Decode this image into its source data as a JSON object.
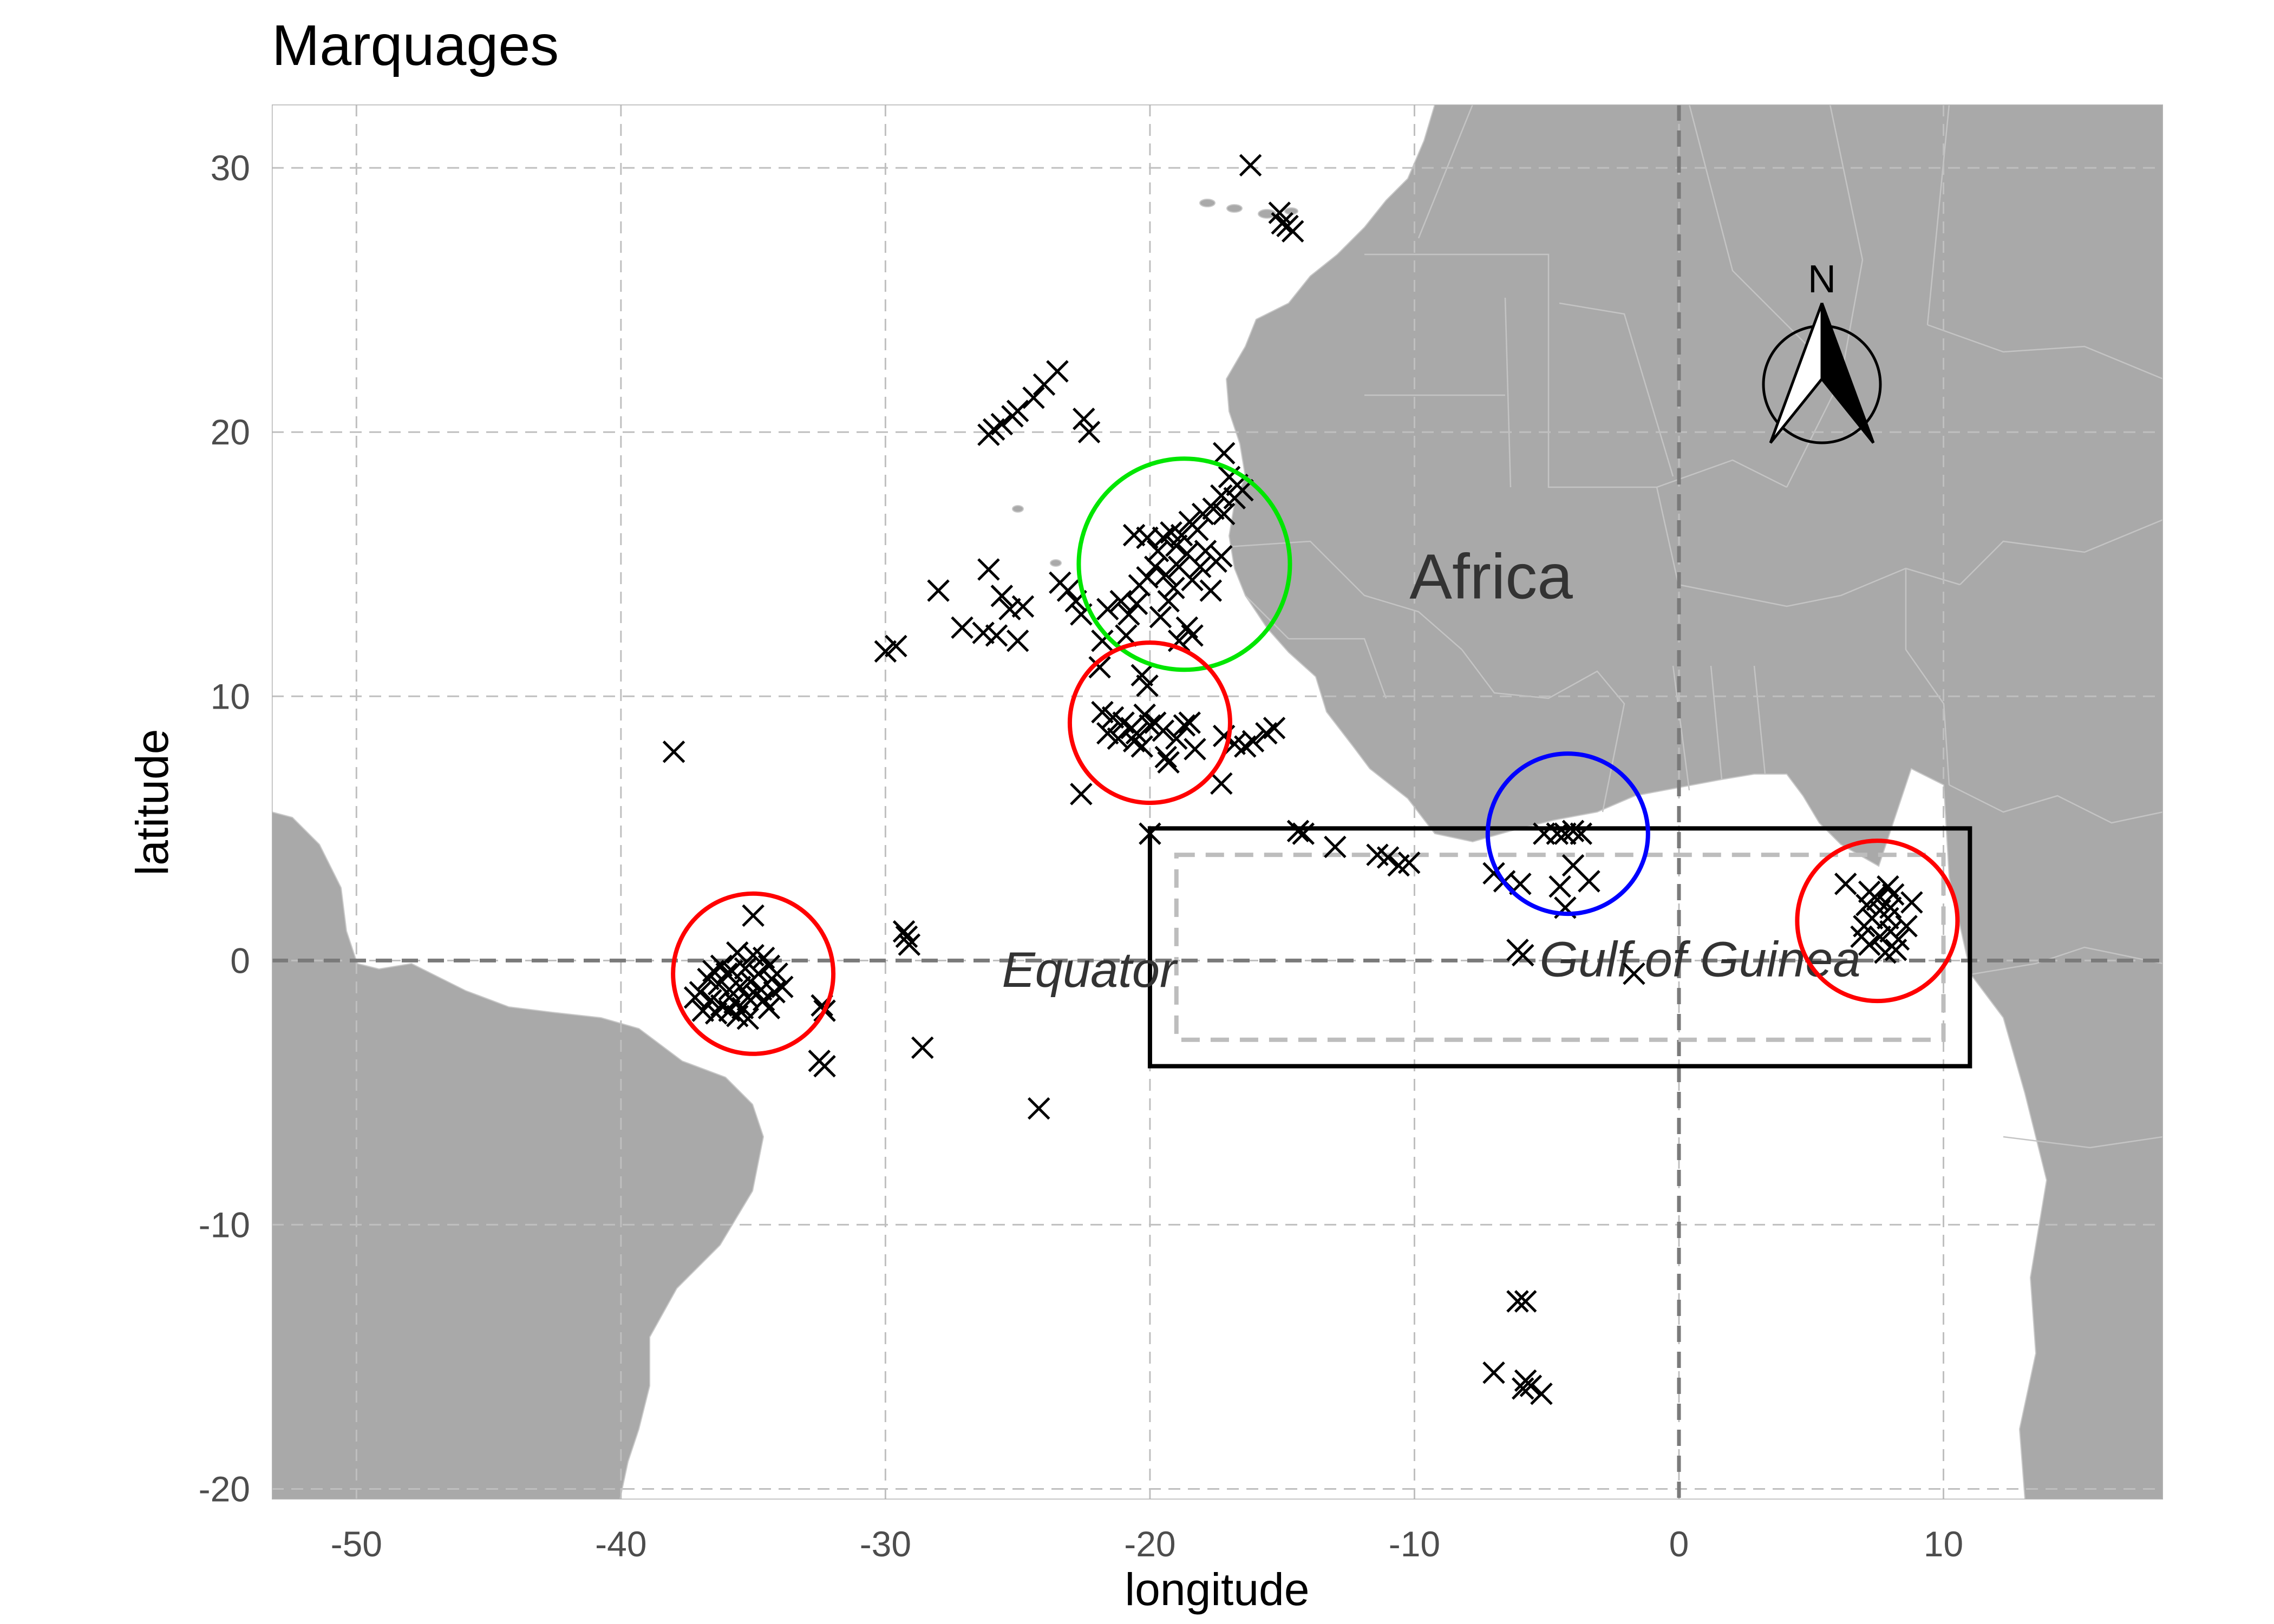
{
  "title": "Marquages",
  "chart_data": {
    "type": "scatter",
    "marker": "x",
    "xlabel": "longitude",
    "ylabel": "latitude",
    "xlim": [
      -53.2,
      18.3
    ],
    "ylim": [
      -20.4,
      32.4
    ],
    "xticks": [
      -50,
      -40,
      -30,
      -20,
      -10,
      0,
      10
    ],
    "yticks": [
      -20,
      -10,
      0,
      10,
      20,
      30
    ],
    "grid": true,
    "region_label": "Africa",
    "equator_label": "Equator",
    "gulf_label": "Gulf of Guinea",
    "north_label": "N",
    "reference_lines": {
      "equator_lat": 0,
      "prime_meridian_lon": 0
    },
    "boxes": [
      {
        "style": "solid",
        "color": "#000000",
        "lon": [
          -20,
          11
        ],
        "lat": [
          -4,
          5
        ]
      },
      {
        "style": "dashed",
        "color": "#bdbdbd",
        "lon": [
          -19,
          10
        ],
        "lat": [
          -3,
          4
        ]
      }
    ],
    "circles": [
      {
        "color": "#00e600",
        "lon": -18.7,
        "lat": 15.0
      },
      {
        "color": "#ff0000",
        "lon": -20.0,
        "lat": 9.0
      },
      {
        "color": "#ff0000",
        "lon": -35.0,
        "lat": -0.5
      },
      {
        "color": "#0000ff",
        "lon": -4.2,
        "lat": 4.8
      },
      {
        "color": "#ff0000",
        "lon": 7.5,
        "lat": 1.5
      }
    ],
    "points": [
      [
        -16.2,
        30.1
      ],
      [
        -15.1,
        28.3
      ],
      [
        -14.8,
        27.8
      ],
      [
        -14.6,
        27.6
      ],
      [
        -15.0,
        27.9
      ],
      [
        -23.5,
        22.3
      ],
      [
        -24.0,
        21.8
      ],
      [
        -24.4,
        21.3
      ],
      [
        -25.0,
        20.8
      ],
      [
        -25.2,
        20.6
      ],
      [
        -25.6,
        20.3
      ],
      [
        -25.9,
        20.1
      ],
      [
        -26.1,
        19.9
      ],
      [
        -22.5,
        20.5
      ],
      [
        -22.3,
        20.0
      ],
      [
        -17.2,
        19.2
      ],
      [
        -17.0,
        18.3
      ],
      [
        -16.7,
        18.0
      ],
      [
        -16.5,
        17.8
      ],
      [
        -16.8,
        17.5
      ],
      [
        -17.3,
        17.6
      ],
      [
        -17.6,
        17.1
      ],
      [
        -17.2,
        16.9
      ],
      [
        -18.0,
        16.9
      ],
      [
        -18.5,
        16.6
      ],
      [
        -18.2,
        16.3
      ],
      [
        -18.8,
        16.1
      ],
      [
        -19.2,
        16.2
      ],
      [
        -19.5,
        16.0
      ],
      [
        -19.0,
        15.7
      ],
      [
        -18.6,
        15.4
      ],
      [
        -17.9,
        15.5
      ],
      [
        -17.5,
        15.1
      ],
      [
        -17.3,
        15.3
      ],
      [
        -18.1,
        14.9
      ],
      [
        -18.9,
        14.9
      ],
      [
        -19.4,
        14.6
      ],
      [
        -19.8,
        14.9
      ],
      [
        -20.1,
        14.5
      ],
      [
        -20.4,
        14.2
      ],
      [
        -19.1,
        14.1
      ],
      [
        -18.4,
        14.4
      ],
      [
        -17.7,
        14.0
      ],
      [
        -20.5,
        13.5
      ],
      [
        -21.1,
        13.6
      ],
      [
        -20.8,
        13.1
      ],
      [
        -21.6,
        13.3
      ],
      [
        -19.6,
        13.0
      ],
      [
        -18.6,
        12.6
      ],
      [
        -18.4,
        12.3
      ],
      [
        -18.9,
        12.1
      ],
      [
        -20.9,
        12.3
      ],
      [
        -20.3,
        10.8
      ],
      [
        -20.1,
        10.4
      ],
      [
        -21.9,
        11.1
      ],
      [
        -20.1,
        16.0
      ],
      [
        -20.6,
        16.1
      ],
      [
        -19.7,
        15.5
      ],
      [
        -19.3,
        13.6
      ],
      [
        -26.1,
        14.8
      ],
      [
        -25.6,
        13.8
      ],
      [
        -25.3,
        13.3
      ],
      [
        -24.8,
        13.4
      ],
      [
        -23.4,
        14.3
      ],
      [
        -23.1,
        14.0
      ],
      [
        -22.8,
        13.6
      ],
      [
        -22.6,
        13.1
      ],
      [
        -21.8,
        12.1
      ],
      [
        -25.8,
        12.3
      ],
      [
        -26.3,
        12.4
      ],
      [
        -25.0,
        12.1
      ],
      [
        -27.1,
        12.6
      ],
      [
        -28.0,
        14.0
      ],
      [
        -29.6,
        11.9
      ],
      [
        -30.0,
        11.7
      ],
      [
        -38.0,
        7.9
      ],
      [
        -21.4,
        9.2
      ],
      [
        -21.0,
        9.0
      ],
      [
        -20.7,
        8.8
      ],
      [
        -20.5,
        8.6
      ],
      [
        -20.2,
        9.3
      ],
      [
        -19.8,
        9.0
      ],
      [
        -19.5,
        8.7
      ],
      [
        -21.2,
        8.4
      ],
      [
        -20.6,
        8.3
      ],
      [
        -19.4,
        7.7
      ],
      [
        -19.3,
        7.5
      ],
      [
        -18.7,
        8.9
      ],
      [
        -21.6,
        8.6
      ],
      [
        -21.8,
        9.4
      ],
      [
        -20.0,
        8.9
      ],
      [
        -20.3,
        8.1
      ],
      [
        -19.0,
        8.4
      ],
      [
        -18.3,
        8.0
      ],
      [
        -18.5,
        9.0
      ],
      [
        -22.6,
        6.3
      ],
      [
        -17.2,
        8.5
      ],
      [
        -16.8,
        8.2
      ],
      [
        -16.4,
        8.1
      ],
      [
        -16.1,
        8.3
      ],
      [
        -15.6,
        8.6
      ],
      [
        -15.3,
        8.8
      ],
      [
        -17.3,
        6.7
      ],
      [
        -20.0,
        4.8
      ],
      [
        -14.4,
        4.9
      ],
      [
        -14.2,
        4.8
      ],
      [
        -13.0,
        4.3
      ],
      [
        -11.4,
        4.0
      ],
      [
        -11.0,
        3.9
      ],
      [
        -10.6,
        3.6
      ],
      [
        -10.2,
        3.7
      ],
      [
        -7.0,
        3.3
      ],
      [
        -6.6,
        3.0
      ],
      [
        -6.0,
        2.9
      ],
      [
        -4.0,
        3.6
      ],
      [
        -3.4,
        3.0
      ],
      [
        -4.5,
        2.8
      ],
      [
        -4.3,
        2.0
      ],
      [
        -6.1,
        0.4
      ],
      [
        -5.9,
        0.2
      ],
      [
        -1.7,
        -0.5
      ],
      [
        -4.3,
        4.8
      ],
      [
        -4.6,
        4.8
      ],
      [
        -4.0,
        4.9
      ],
      [
        -3.7,
        4.8
      ],
      [
        -5.1,
        4.8
      ],
      [
        6.3,
        2.9
      ],
      [
        7.2,
        2.6
      ],
      [
        7.5,
        2.3
      ],
      [
        7.9,
        2.8
      ],
      [
        8.1,
        2.5
      ],
      [
        7.6,
        1.9
      ],
      [
        7.3,
        1.6
      ],
      [
        7.0,
        1.3
      ],
      [
        6.9,
        0.9
      ],
      [
        7.2,
        0.6
      ],
      [
        7.6,
        0.9
      ],
      [
        8.0,
        1.1
      ],
      [
        8.3,
        0.8
      ],
      [
        8.6,
        1.3
      ],
      [
        8.8,
        2.2
      ],
      [
        8.2,
        0.4
      ],
      [
        7.8,
        0.3
      ],
      [
        7.1,
        2.1
      ],
      [
        7.4,
        2.4
      ],
      [
        7.9,
        1.6
      ],
      [
        8.0,
        2.0
      ],
      [
        -35.0,
        1.7
      ],
      [
        -35.6,
        0.3
      ],
      [
        -35.0,
        0.2
      ],
      [
        -34.6,
        0.1
      ],
      [
        -36.2,
        -0.2
      ],
      [
        -35.8,
        -0.4
      ],
      [
        -35.3,
        -0.3
      ],
      [
        -34.8,
        -0.5
      ],
      [
        -34.4,
        -0.2
      ],
      [
        -36.7,
        -0.7
      ],
      [
        -36.3,
        -0.9
      ],
      [
        -35.9,
        -1.1
      ],
      [
        -35.5,
        -1.0
      ],
      [
        -35.1,
        -0.8
      ],
      [
        -34.7,
        -1.1
      ],
      [
        -34.3,
        -0.7
      ],
      [
        -37.0,
        -1.2
      ],
      [
        -36.6,
        -1.5
      ],
      [
        -36.2,
        -1.7
      ],
      [
        -35.7,
        -1.6
      ],
      [
        -35.2,
        -1.4
      ],
      [
        -34.6,
        -1.5
      ],
      [
        -34.2,
        -1.2
      ],
      [
        -36.9,
        -1.9
      ],
      [
        -36.4,
        -2.0
      ],
      [
        -35.9,
        -1.9
      ],
      [
        -35.4,
        -1.8
      ],
      [
        -34.9,
        -1.3
      ],
      [
        -35.6,
        -2.1
      ],
      [
        -36.0,
        -0.5
      ],
      [
        -34.1,
        -0.5
      ],
      [
        -33.9,
        -1.0
      ],
      [
        -36.5,
        -0.4
      ],
      [
        -35.2,
        -2.2
      ],
      [
        -37.2,
        -1.4
      ],
      [
        -34.4,
        -1.8
      ],
      [
        -32.4,
        -1.7
      ],
      [
        -32.3,
        -1.9
      ],
      [
        -32.5,
        -3.8
      ],
      [
        -32.3,
        -4.0
      ],
      [
        -29.3,
        1.1
      ],
      [
        -29.2,
        0.9
      ],
      [
        -29.1,
        0.6
      ],
      [
        -28.6,
        -3.3
      ],
      [
        -24.2,
        -5.6
      ],
      [
        -6.1,
        -12.9
      ],
      [
        -5.8,
        -12.9
      ],
      [
        -7.0,
        -15.6
      ],
      [
        -5.8,
        -15.9
      ],
      [
        -5.9,
        -16.2
      ],
      [
        -5.6,
        -16.1
      ],
      [
        -5.2,
        -16.4
      ]
    ]
  }
}
